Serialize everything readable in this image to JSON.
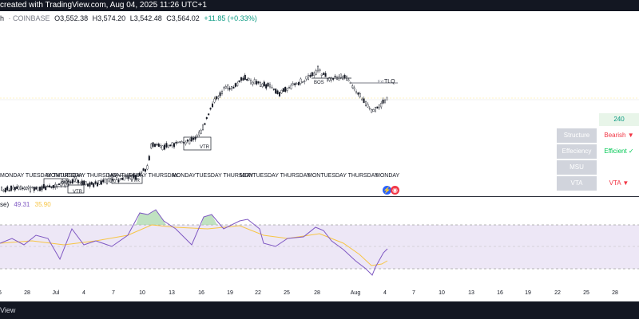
{
  "header": {
    "created_text": "created with TradingView.com, Aug 04, 2025 11:26 UTC+1"
  },
  "legend": {
    "symbol_partial": "h",
    "exchange": "· COINBASE",
    "open": "O3,552.38",
    "high": "H3,574.20",
    "low": "L3,542.48",
    "close": "C3,564.02",
    "change": "+11.85 (+0.33%)"
  },
  "rsi_legend": {
    "name_partial": "se)",
    "value1": "49.31",
    "value2": "35.90"
  },
  "chart_labels": {
    "bos1": "BOS",
    "vtr1": "VTR",
    "vtr2": "VTR",
    "vtr3": "VTR",
    "bos2": "BOS",
    "tlq": "TLQ",
    "ext": "Ext",
    "days_group_1": "MONDAY TUESDAY THURSDAY",
    "days_group_2": "MONTUESDAY THURSDAY",
    "days_group_3": "MONTUESDAY THURSDAY",
    "days_group_4": "MONDAYTUESDAY THURSDAY",
    "days_group_5": "MONTUESDAY THURSDAY",
    "days_group_6": "MONTUESDAY THURSDAY",
    "days_group_7": "MONDAY"
  },
  "table": {
    "timeframe": "240",
    "rows": [
      {
        "label": "Structure",
        "value": "Bearish ▼"
      },
      {
        "label": "Effeciency",
        "value": "Efficient ✓"
      },
      {
        "label": "MSU",
        "value": ""
      },
      {
        "label": "VTA",
        "value": "VTA ▼"
      }
    ]
  },
  "xaxis": {
    "ticks": [
      "6",
      "28",
      "Jul",
      "4",
      "7",
      "10",
      "13",
      "16",
      "19",
      "22",
      "25",
      "28",
      "Aug",
      "4",
      "7",
      "10",
      "13",
      "16",
      "19",
      "22",
      "25",
      "28"
    ]
  },
  "bottombar": {
    "label": "View"
  },
  "colors": {
    "up": "#089981",
    "down": "#f23645",
    "rsi": "#7e57c2",
    "rsi_ma": "#f7c544",
    "band": "#ede7f6"
  }
}
